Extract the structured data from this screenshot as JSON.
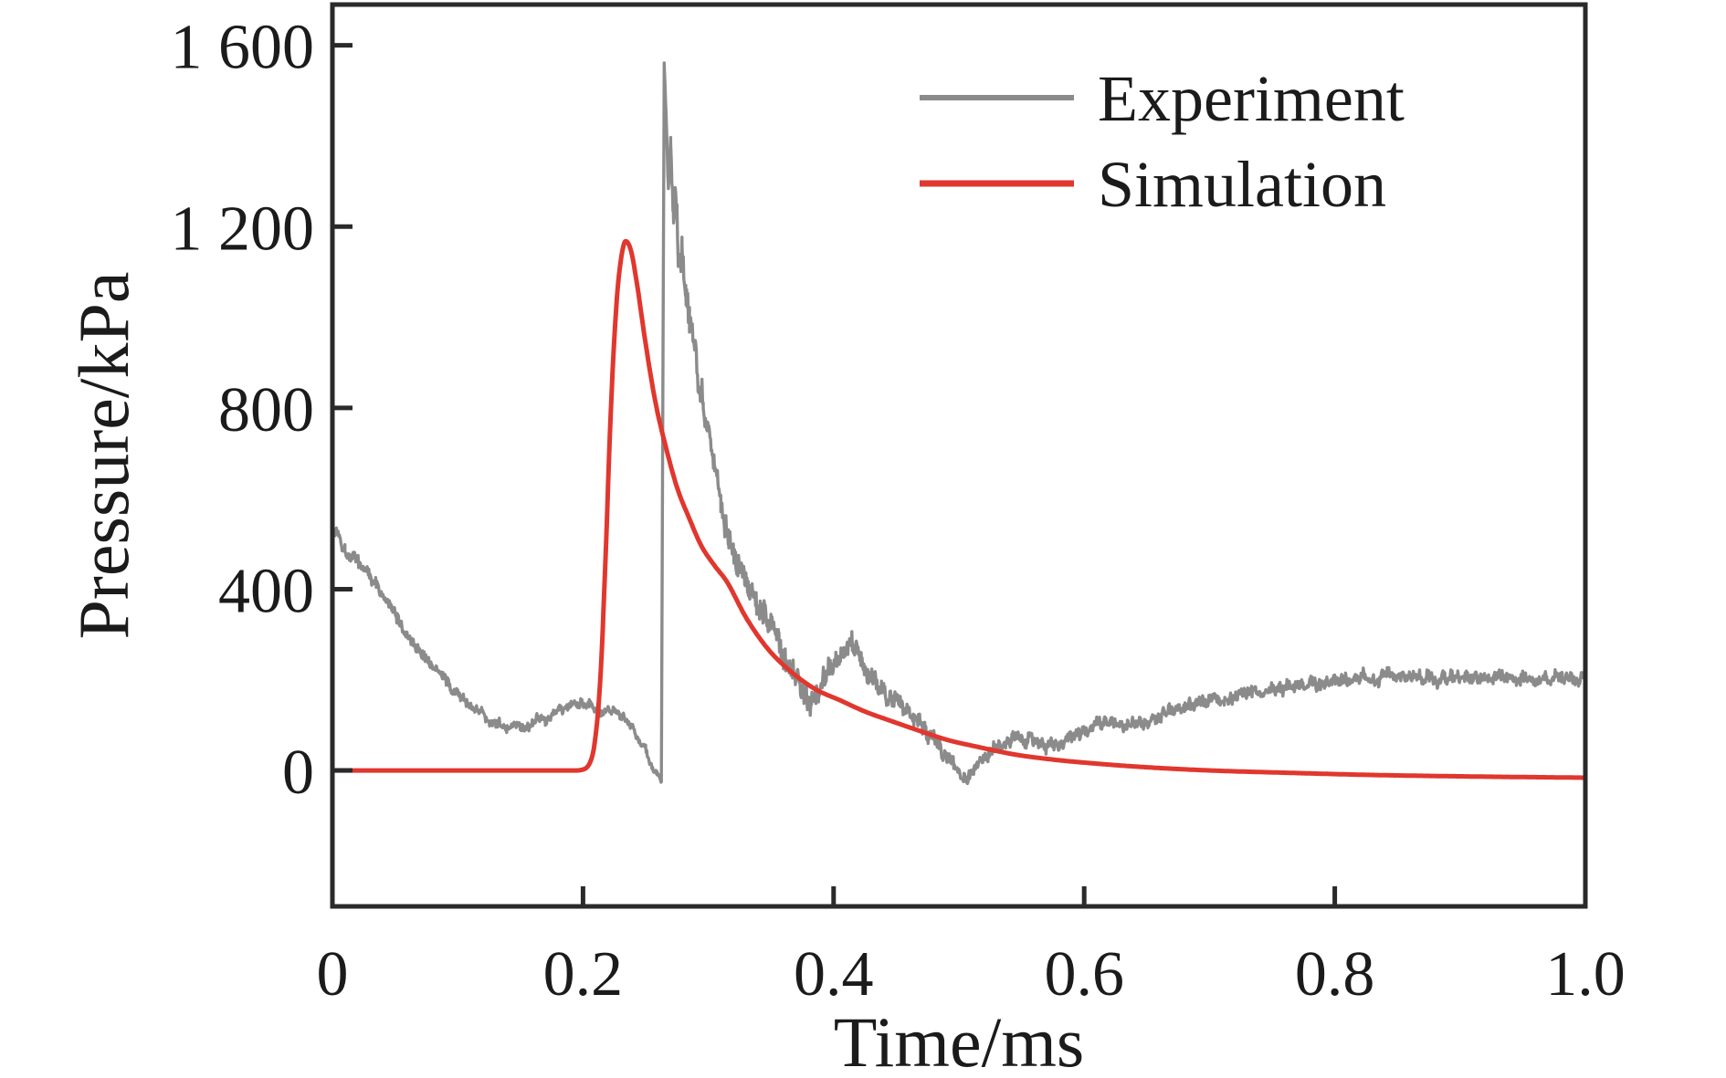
{
  "figure": {
    "background_color": "#ffffff",
    "axis_color": "#2a2a2a",
    "text_color": "#1b1b1b"
  },
  "chart_data": {
    "type": "line",
    "title": "",
    "xlabel": "Time/ms",
    "ylabel": "Pressure/kPa",
    "xlim": [
      0,
      1.0
    ],
    "ylim": [
      -300,
      1690
    ],
    "x_ticks": [
      0,
      0.2,
      0.4,
      0.6,
      0.8,
      1.0
    ],
    "x_tick_labels": [
      "0",
      "0.2",
      "0.4",
      "0.6",
      "0.8",
      "1.0"
    ],
    "y_ticks": [
      0,
      400,
      800,
      1200,
      1600
    ],
    "y_tick_labels": [
      "0",
      "400",
      "800",
      "1 200",
      "1 600"
    ],
    "grid": false,
    "legend_position": "upper-right-inside",
    "series": [
      {
        "name": "Experiment",
        "color": "#8b8b8b",
        "style": "noisy",
        "line_width": 3.4,
        "points": [
          [
            0.0,
            515
          ],
          [
            0.004,
            530
          ],
          [
            0.01,
            492
          ],
          [
            0.02,
            462
          ],
          [
            0.03,
            430
          ],
          [
            0.044,
            368
          ],
          [
            0.058,
            308
          ],
          [
            0.073,
            254
          ],
          [
            0.088,
            207
          ],
          [
            0.102,
            161
          ],
          [
            0.117,
            127
          ],
          [
            0.131,
            103
          ],
          [
            0.143,
            93
          ],
          [
            0.158,
            97
          ],
          [
            0.173,
            121
          ],
          [
            0.187,
            139
          ],
          [
            0.197,
            147
          ],
          [
            0.205,
            143
          ],
          [
            0.212,
            139
          ],
          [
            0.226,
            133
          ],
          [
            0.235,
            110
          ],
          [
            0.241,
            91
          ],
          [
            0.25,
            40
          ],
          [
            0.256,
            5
          ],
          [
            0.259,
            -8
          ],
          [
            0.2625,
            -28
          ],
          [
            0.2648,
            1558
          ],
          [
            0.2665,
            1440
          ],
          [
            0.268,
            1262
          ],
          [
            0.27,
            1380
          ],
          [
            0.272,
            1215
          ],
          [
            0.274,
            1290
          ],
          [
            0.276,
            1150
          ],
          [
            0.279,
            1165
          ],
          [
            0.282,
            1040
          ],
          [
            0.285,
            1000
          ],
          [
            0.288,
            962
          ],
          [
            0.292,
            872
          ],
          [
            0.296,
            822
          ],
          [
            0.3,
            762
          ],
          [
            0.305,
            688
          ],
          [
            0.31,
            602
          ],
          [
            0.316,
            528
          ],
          [
            0.322,
            472
          ],
          [
            0.332,
            412
          ],
          [
            0.345,
            345
          ],
          [
            0.356,
            274
          ],
          [
            0.366,
            215
          ],
          [
            0.376,
            181
          ],
          [
            0.381,
            158
          ],
          [
            0.388,
            186
          ],
          [
            0.393,
            208
          ],
          [
            0.4,
            233
          ],
          [
            0.408,
            262
          ],
          [
            0.415,
            277
          ],
          [
            0.422,
            250
          ],
          [
            0.43,
            206
          ],
          [
            0.438,
            181
          ],
          [
            0.449,
            153
          ],
          [
            0.458,
            134
          ],
          [
            0.464,
            113
          ],
          [
            0.471,
            95
          ],
          [
            0.478,
            78
          ],
          [
            0.487,
            38
          ],
          [
            0.493,
            22
          ],
          [
            0.5,
            -6
          ],
          [
            0.506,
            -20
          ],
          [
            0.515,
            14
          ],
          [
            0.528,
            54
          ],
          [
            0.542,
            72
          ],
          [
            0.555,
            70
          ],
          [
            0.568,
            60
          ],
          [
            0.58,
            62
          ],
          [
            0.592,
            75
          ],
          [
            0.605,
            95
          ],
          [
            0.615,
            110
          ],
          [
            0.63,
            100
          ],
          [
            0.648,
            106
          ],
          [
            0.668,
            130
          ],
          [
            0.685,
            146
          ],
          [
            0.705,
            158
          ],
          [
            0.734,
            172
          ],
          [
            0.77,
            186
          ],
          [
            0.8,
            196
          ],
          [
            0.83,
            205
          ],
          [
            0.85,
            208
          ],
          [
            0.88,
            204
          ],
          [
            0.91,
            208
          ],
          [
            0.94,
            204
          ],
          [
            0.97,
            206
          ],
          [
            1.0,
            202
          ]
        ],
        "noise_band_kpa": [
          [
            0.0,
            22
          ],
          [
            0.05,
            20
          ],
          [
            0.1,
            17
          ],
          [
            0.14,
            15
          ],
          [
            0.2,
            16
          ],
          [
            0.25,
            13
          ],
          [
            0.26,
            8
          ],
          [
            0.2648,
            8
          ],
          [
            0.268,
            45
          ],
          [
            0.28,
            55
          ],
          [
            0.295,
            42
          ],
          [
            0.31,
            40
          ],
          [
            0.33,
            45
          ],
          [
            0.36,
            45
          ],
          [
            0.385,
            40
          ],
          [
            0.415,
            35
          ],
          [
            0.445,
            30
          ],
          [
            0.47,
            25
          ],
          [
            0.5,
            20
          ],
          [
            0.54,
            20
          ],
          [
            0.58,
            22
          ],
          [
            0.62,
            22
          ],
          [
            0.7,
            20
          ],
          [
            0.8,
            22
          ],
          [
            0.9,
            20
          ],
          [
            1.0,
            20
          ]
        ]
      },
      {
        "name": "Simulation",
        "color": "#e0372e",
        "style": "smooth",
        "line_width": 5,
        "points": [
          [
            0.0,
            0
          ],
          [
            0.06,
            0
          ],
          [
            0.12,
            0
          ],
          [
            0.17,
            0
          ],
          [
            0.195,
            0
          ],
          [
            0.201,
            3
          ],
          [
            0.206,
            20
          ],
          [
            0.21,
            75
          ],
          [
            0.214,
            210
          ],
          [
            0.218,
            470
          ],
          [
            0.222,
            780
          ],
          [
            0.227,
            1040
          ],
          [
            0.231,
            1140
          ],
          [
            0.234,
            1168
          ],
          [
            0.238,
            1150
          ],
          [
            0.243,
            1075
          ],
          [
            0.249,
            960
          ],
          [
            0.258,
            810
          ],
          [
            0.266,
            715
          ],
          [
            0.275,
            625
          ],
          [
            0.285,
            555
          ],
          [
            0.294,
            498
          ],
          [
            0.305,
            452
          ],
          [
            0.314,
            420
          ],
          [
            0.33,
            338
          ],
          [
            0.347,
            270
          ],
          [
            0.366,
            218
          ],
          [
            0.385,
            180
          ],
          [
            0.405,
            155
          ],
          [
            0.425,
            130
          ],
          [
            0.445,
            110
          ],
          [
            0.468,
            88
          ],
          [
            0.49,
            68
          ],
          [
            0.515,
            52
          ],
          [
            0.545,
            35
          ],
          [
            0.575,
            24
          ],
          [
            0.61,
            15
          ],
          [
            0.65,
            7
          ],
          [
            0.7,
            0
          ],
          [
            0.76,
            -5
          ],
          [
            0.83,
            -10
          ],
          [
            0.9,
            -13
          ],
          [
            1.0,
            -16
          ]
        ]
      }
    ],
    "peak_annotations": {
      "experiment_peak_kpa": 1558,
      "experiment_peak_time_ms": 0.265,
      "simulation_peak_kpa": 1168,
      "simulation_peak_time_ms": 0.234
    }
  },
  "legend": {
    "items": [
      {
        "label": "Experiment",
        "color": "#8b8b8b"
      },
      {
        "label": "Simulation",
        "color": "#e0372e"
      }
    ]
  }
}
